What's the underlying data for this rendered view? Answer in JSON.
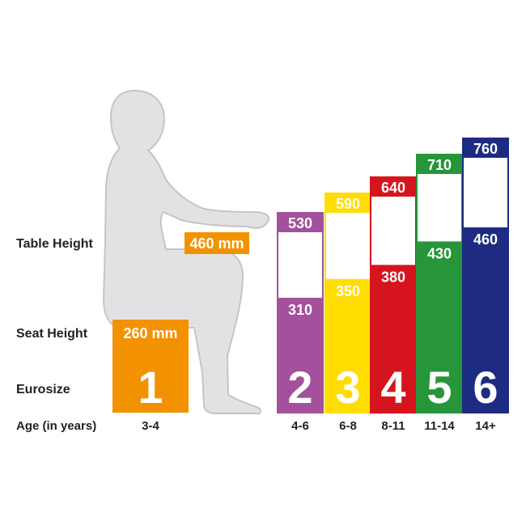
{
  "labels": {
    "table_height": "Table Height",
    "seat_height": "Seat Height",
    "eurosize": "Eurosize",
    "age": "Age (in years)"
  },
  "chart_data": {
    "type": "bar",
    "sizes": [
      {
        "size": "1",
        "age": "3-4",
        "seat": 260,
        "table": 460,
        "seat_label": "260 mm",
        "table_label": "460 mm",
        "color": "#f39200"
      },
      {
        "size": "2",
        "age": "4-6",
        "seat": 310,
        "table": 530,
        "seat_label": "310",
        "table_label": "530",
        "color": "#a4509c"
      },
      {
        "size": "3",
        "age": "6-8",
        "seat": 350,
        "table": 590,
        "seat_label": "350",
        "table_label": "590",
        "color": "#ffdd00"
      },
      {
        "size": "4",
        "age": "8-11",
        "seat": 380,
        "table": 640,
        "seat_label": "380",
        "table_label": "640",
        "color": "#d6141e"
      },
      {
        "size": "5",
        "age": "11-14",
        "seat": 430,
        "table": 710,
        "seat_label": "430",
        "table_label": "710",
        "color": "#27953a"
      },
      {
        "size": "6",
        "age": "14+",
        "seat": 460,
        "table": 760,
        "seat_label": "460",
        "table_label": "760",
        "color": "#1e2b82"
      }
    ]
  },
  "figure_color": "#e2e2e4"
}
